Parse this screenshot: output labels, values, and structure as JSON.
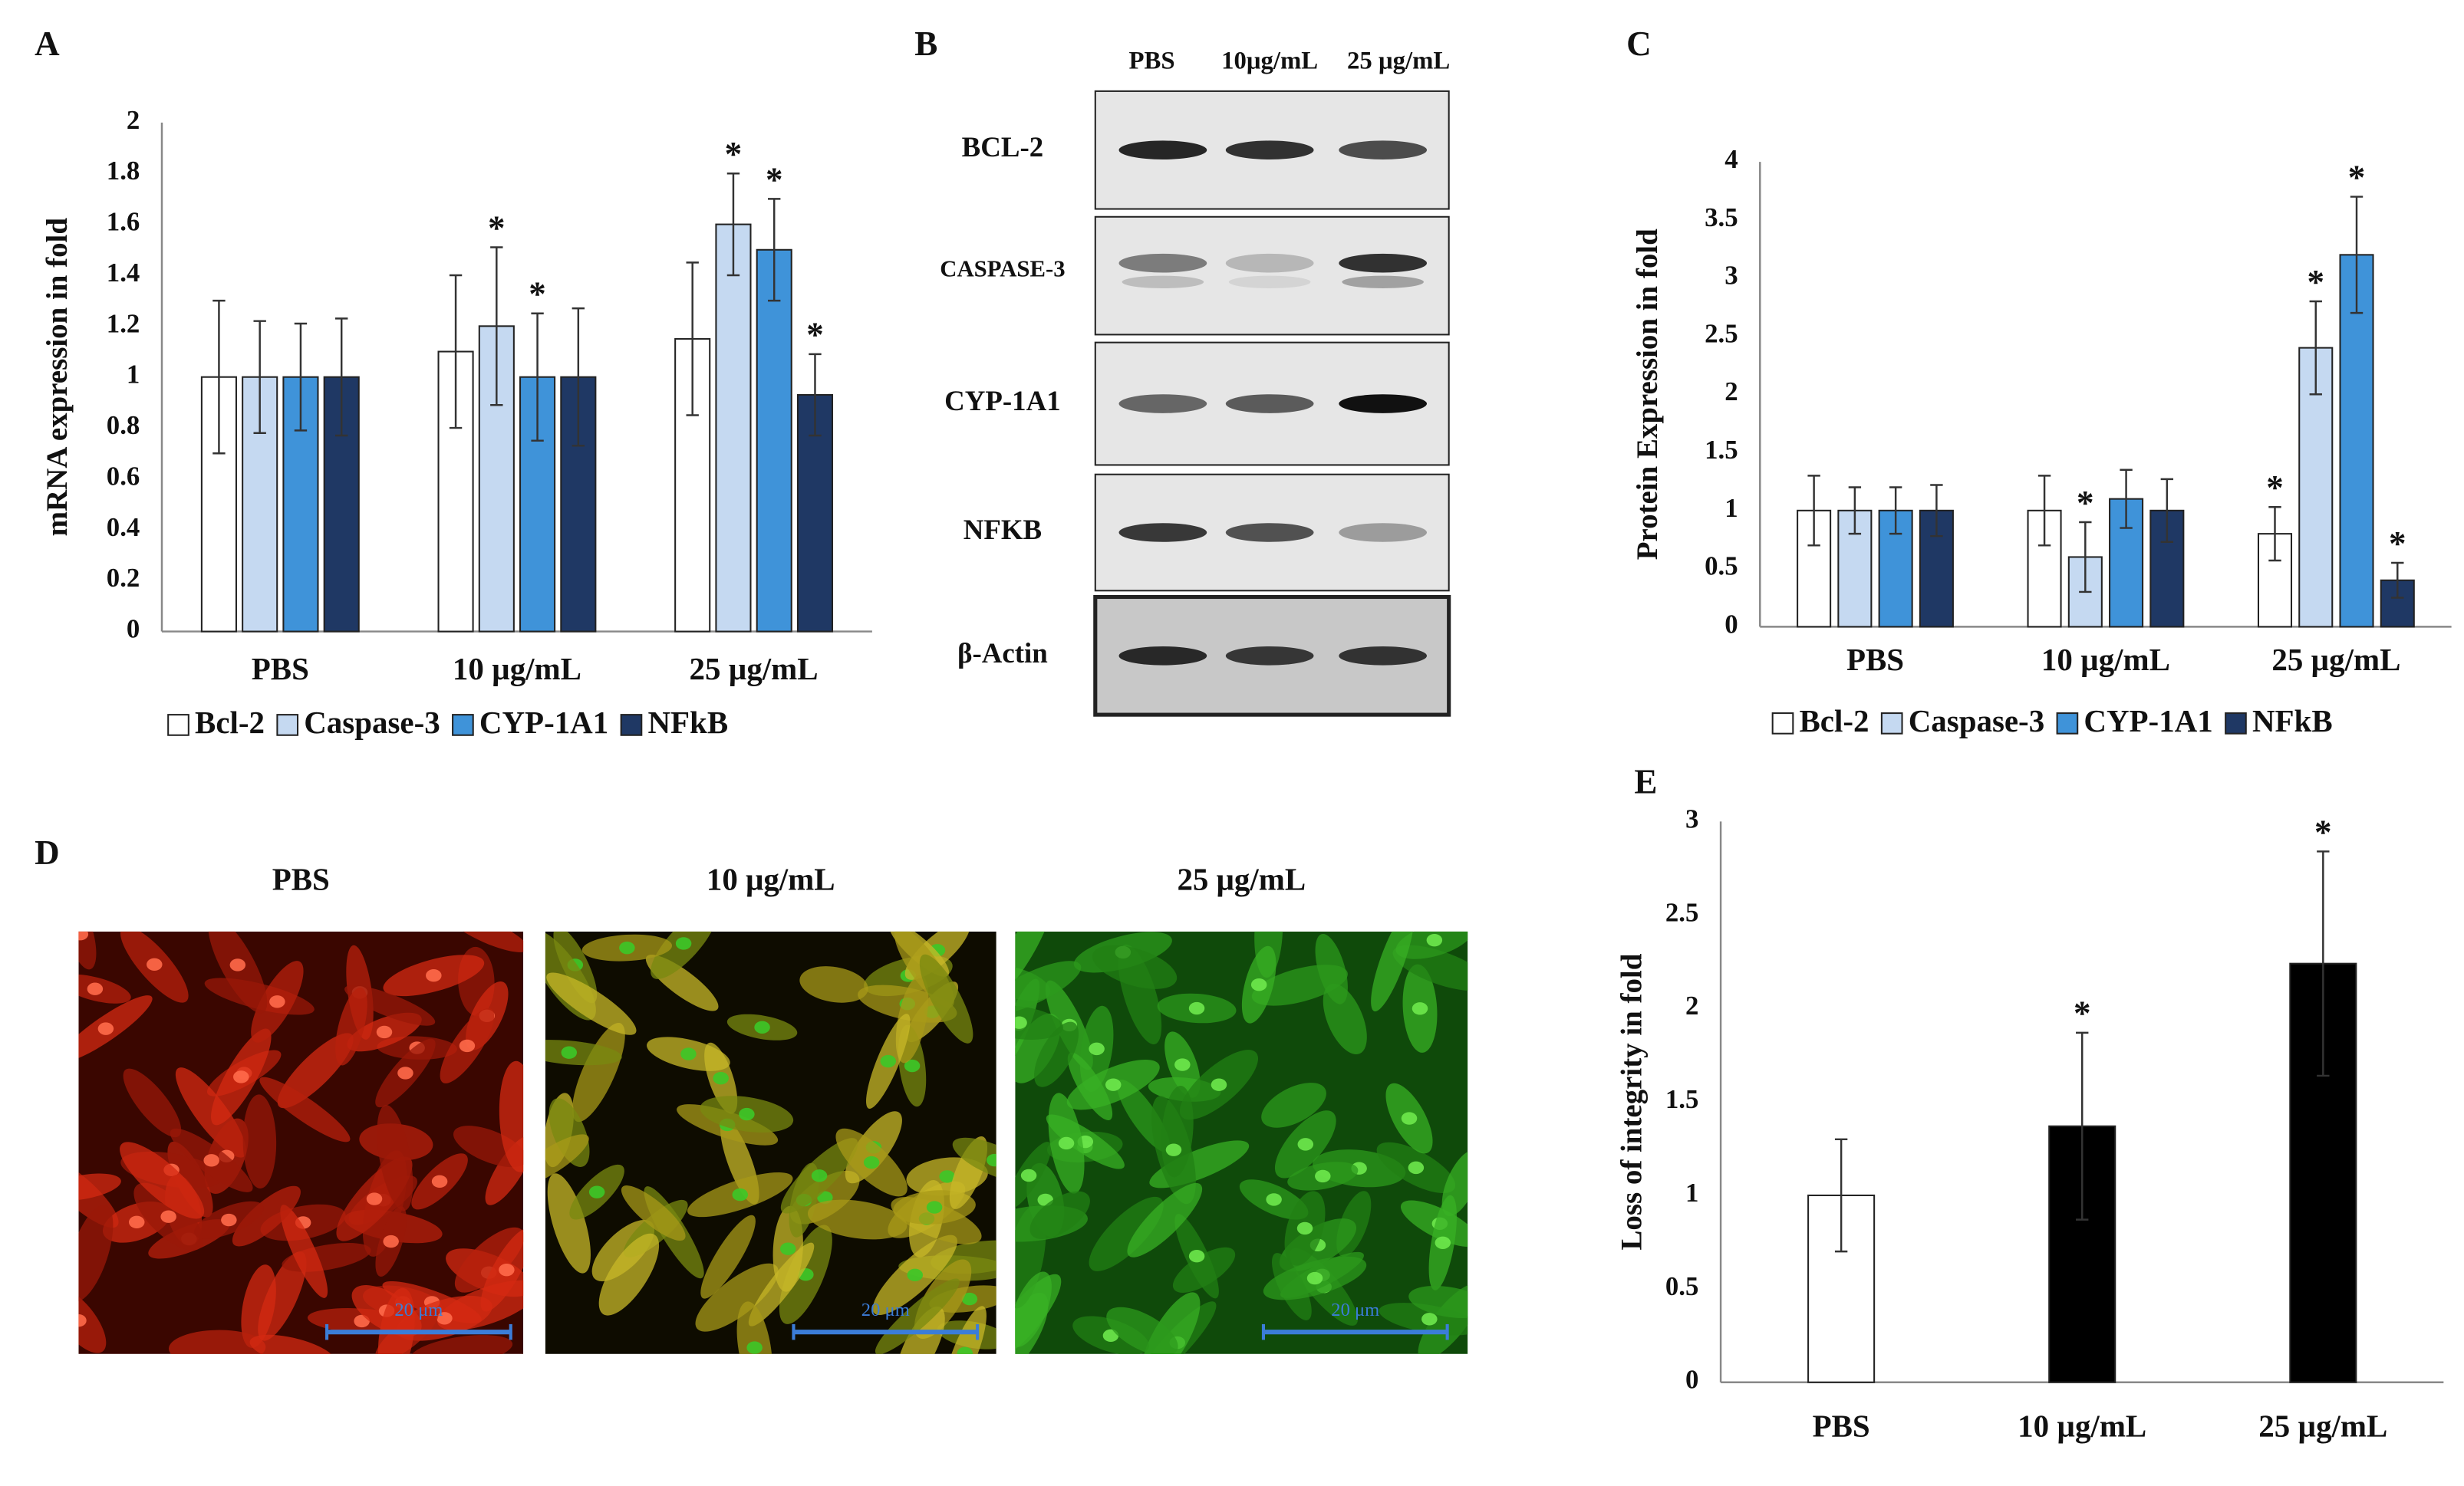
{
  "chart_data": [
    {
      "type": "bar",
      "label": "A",
      "ylabel": "mRNA expression in fold",
      "categories": [
        "PBS",
        "10 µg/mL",
        "25 µg/mL"
      ],
      "ylim": [
        0,
        2
      ],
      "yticks": [
        0,
        0.2,
        0.4,
        0.6,
        0.8,
        1,
        1.2,
        1.4,
        1.6,
        1.8,
        2
      ],
      "grid": false,
      "legend": "bottom",
      "series": [
        {
          "name": "Bcl-2",
          "color": "#ffffff",
          "values": [
            1,
            1.1,
            1.15
          ],
          "errors": [
            0.3,
            0.3,
            0.3
          ],
          "significance": [
            null,
            null,
            null
          ]
        },
        {
          "name": "Caspase-3",
          "color": "#c5d9f1",
          "values": [
            1,
            1.2,
            1.6
          ],
          "errors": [
            0.22,
            0.31,
            0.2
          ],
          "significance": [
            null,
            "*",
            "*"
          ]
        },
        {
          "name": "CYP-1A1",
          "color": "#3f93d9",
          "values": [
            1,
            1.0,
            1.5
          ],
          "errors": [
            0.21,
            0.25,
            0.2
          ],
          "significance": [
            null,
            "*",
            "*"
          ]
        },
        {
          "name": "NFkB",
          "color": "#1f3864",
          "values": [
            1,
            1.0,
            0.93
          ],
          "errors": [
            0.23,
            0.27,
            0.16
          ],
          "significance": [
            null,
            null,
            "*"
          ]
        }
      ]
    },
    {
      "type": "bar",
      "label": "C",
      "ylabel": "Protein Expression in fold",
      "categories": [
        "PBS",
        "10 µg/mL",
        "25 µg/mL"
      ],
      "ylim": [
        0,
        4
      ],
      "yticks": [
        0,
        0.5,
        1,
        1.5,
        2,
        2.5,
        3,
        3.5,
        4
      ],
      "grid": false,
      "legend": "bottom",
      "series": [
        {
          "name": "Bcl-2",
          "color": "#ffffff",
          "values": [
            1,
            1,
            0.8
          ],
          "errors": [
            0.3,
            0.3,
            0.23
          ],
          "significance": [
            null,
            null,
            "*"
          ]
        },
        {
          "name": "Caspase-3",
          "color": "#c5d9f1",
          "values": [
            1,
            0.6,
            2.4
          ],
          "errors": [
            0.2,
            0.3,
            0.4
          ],
          "significance": [
            null,
            "*",
            "*"
          ]
        },
        {
          "name": "CYP-1A1",
          "color": "#3f93d9",
          "values": [
            1,
            1.1,
            3.2
          ],
          "errors": [
            0.2,
            0.25,
            0.5
          ],
          "significance": [
            null,
            null,
            "*"
          ]
        },
        {
          "name": "NFkB",
          "color": "#1f3864",
          "values": [
            1,
            1,
            0.4
          ],
          "errors": [
            0.22,
            0.27,
            0.15
          ],
          "significance": [
            null,
            null,
            "*"
          ]
        }
      ]
    },
    {
      "type": "bar",
      "label": "E",
      "ylabel": "Loss of integrity in fold",
      "categories": [
        "PBS",
        "10 µg/mL",
        "25 µg/mL"
      ],
      "ylim": [
        0,
        3
      ],
      "yticks": [
        0,
        0.5,
        1,
        1.5,
        2,
        2.5,
        3
      ],
      "grid": false,
      "series": [
        {
          "colors": [
            "#ffffff",
            "#000000",
            "#000000"
          ],
          "values": [
            1,
            1.37,
            2.24
          ],
          "errors": [
            0.3,
            0.5,
            0.6
          ],
          "significance": [
            null,
            "*",
            "*"
          ]
        }
      ]
    }
  ],
  "blot": {
    "label": "B",
    "lanes": [
      "PBS",
      "10μg/mL",
      "25 μg/mL"
    ],
    "rows": [
      "BCL-2",
      "CASPASE-3",
      "CYP-1A1",
      "NFKB",
      "β-Actin"
    ]
  },
  "micrographs": {
    "label": "D",
    "conditions": [
      "PBS",
      "10 μg/mL",
      "25 μg/mL"
    ],
    "scale_bar": "20 μm"
  }
}
